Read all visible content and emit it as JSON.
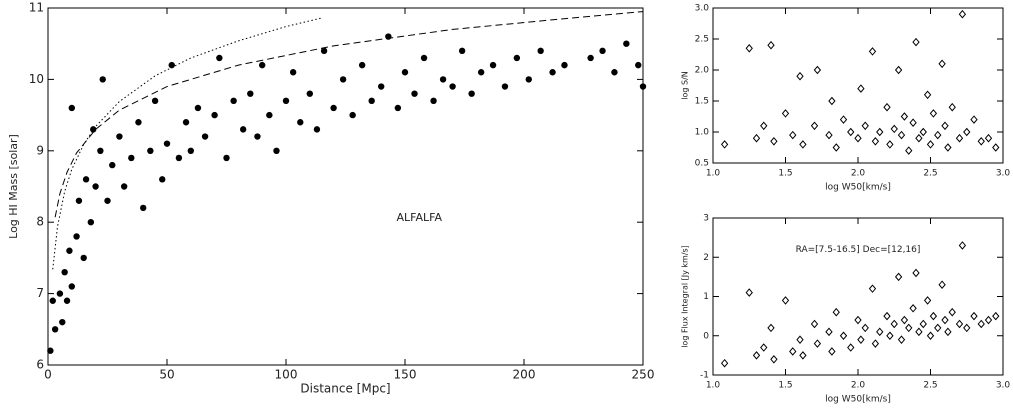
{
  "chart_data": [
    {
      "type": "scatter",
      "xlabel": "Distance [Mpc]",
      "ylabel": "Log HI Mass [solar]",
      "annotation": "ALFALFA",
      "annotation_x": 156,
      "annotation_y": 8.06,
      "marker": "filled-circle",
      "color": "#000000",
      "xlim": [
        0,
        250
      ],
      "ylim": [
        6,
        11
      ],
      "xticks": [
        0,
        50,
        100,
        150,
        200,
        250
      ],
      "yticks": [
        6,
        7,
        8,
        9,
        10,
        11
      ],
      "x": [
        1,
        2,
        3,
        5,
        6,
        7,
        8,
        9,
        10,
        10,
        12,
        13,
        15,
        16,
        18,
        19,
        20,
        22,
        23,
        25,
        27,
        30,
        32,
        35,
        38,
        40,
        43,
        45,
        48,
        50,
        52,
        55,
        58,
        60,
        63,
        66,
        70,
        72,
        75,
        78,
        82,
        85,
        88,
        90,
        93,
        96,
        100,
        103,
        106,
        110,
        113,
        116,
        120,
        124,
        128,
        132,
        136,
        140,
        143,
        147,
        150,
        154,
        158,
        162,
        166,
        170,
        174,
        178,
        182,
        187,
        192,
        197,
        202,
        207,
        212,
        217,
        228,
        233,
        238,
        243,
        248,
        250
      ],
      "y": [
        6.2,
        6.9,
        6.5,
        7.0,
        6.6,
        7.3,
        6.9,
        7.6,
        7.1,
        9.6,
        7.8,
        8.3,
        7.5,
        8.6,
        8.0,
        9.3,
        8.5,
        9.0,
        10.0,
        8.3,
        8.8,
        9.2,
        8.5,
        8.9,
        9.4,
        8.2,
        9.0,
        9.7,
        8.6,
        9.1,
        10.2,
        8.9,
        9.4,
        9.0,
        9.6,
        9.2,
        9.5,
        10.3,
        8.9,
        9.7,
        9.3,
        9.8,
        9.2,
        10.2,
        9.5,
        9.0,
        9.7,
        10.1,
        9.4,
        9.8,
        9.3,
        10.4,
        9.6,
        10.0,
        9.5,
        10.2,
        9.7,
        9.9,
        10.6,
        9.6,
        10.1,
        9.8,
        10.3,
        9.7,
        10.0,
        9.9,
        10.4,
        9.8,
        10.1,
        10.2,
        9.9,
        10.3,
        10.0,
        10.4,
        10.1,
        10.2,
        10.3,
        10.4,
        10.1,
        10.5,
        10.2,
        9.9
      ],
      "curves": [
        {
          "style": "dotted",
          "x": [
            2,
            4,
            7,
            10,
            15,
            20,
            30,
            45,
            60,
            80,
            100,
            115
          ],
          "y": [
            7.34,
            7.94,
            8.43,
            8.74,
            9.09,
            9.34,
            9.69,
            10.05,
            10.3,
            10.54,
            10.74,
            10.86
          ]
        },
        {
          "style": "dashed",
          "x": [
            3,
            5,
            8,
            12,
            20,
            30,
            50,
            80,
            120,
            170,
            220,
            250
          ],
          "y": [
            8.07,
            8.4,
            8.7,
            8.97,
            9.3,
            9.57,
            9.9,
            10.2,
            10.47,
            10.7,
            10.86,
            10.95
          ]
        }
      ]
    },
    {
      "type": "scatter",
      "xlabel": "log W50[km/s]",
      "ylabel": "log S/N",
      "marker": "open-diamond",
      "color": "#000000",
      "xlim": [
        1,
        3
      ],
      "ylim": [
        0.5,
        3
      ],
      "xticks": [
        {
          "value": 1,
          "label": "1.0"
        },
        1.5,
        {
          "value": 2,
          "label": "2.0"
        },
        2.5,
        {
          "value": 3,
          "label": "3.0"
        }
      ],
      "yticks": [
        0.5,
        {
          "value": 1,
          "label": "1.0"
        },
        1.5,
        {
          "value": 2,
          "label": "2.0"
        },
        2.5,
        {
          "value": 3,
          "label": "3.0"
        }
      ],
      "x": [
        1.08,
        1.25,
        1.3,
        1.35,
        1.4,
        1.42,
        1.5,
        1.55,
        1.6,
        1.62,
        1.7,
        1.72,
        1.8,
        1.82,
        1.85,
        1.9,
        1.95,
        2.0,
        2.02,
        2.05,
        2.1,
        2.12,
        2.15,
        2.2,
        2.22,
        2.25,
        2.28,
        2.3,
        2.32,
        2.35,
        2.38,
        2.4,
        2.42,
        2.45,
        2.48,
        2.5,
        2.52,
        2.55,
        2.58,
        2.6,
        2.62,
        2.65,
        2.7,
        2.72,
        2.75,
        2.8,
        2.85,
        2.9,
        2.95
      ],
      "y": [
        0.8,
        2.35,
        0.9,
        1.1,
        2.4,
        0.85,
        1.3,
        0.95,
        1.9,
        0.8,
        1.1,
        2.0,
        0.95,
        1.5,
        0.75,
        1.2,
        1.0,
        0.9,
        1.7,
        1.1,
        2.3,
        0.85,
        1.0,
        1.4,
        0.8,
        1.05,
        2.0,
        0.95,
        1.25,
        0.7,
        1.15,
        2.45,
        0.9,
        1.0,
        1.6,
        0.8,
        1.3,
        0.95,
        2.1,
        1.1,
        0.75,
        1.4,
        0.9,
        2.9,
        1.0,
        1.2,
        0.85,
        0.9,
        0.75
      ]
    },
    {
      "type": "scatter",
      "xlabel": "log W50[km/s]",
      "ylabel": "log Flux Integral [Jy km/s]",
      "annotation": "RA=[7.5-16.5]   Dec=[12,16]",
      "annotation_x": 2.0,
      "annotation_y": 2.2,
      "marker": "open-diamond",
      "color": "#000000",
      "xlim": [
        1,
        3
      ],
      "ylim": [
        -1,
        3
      ],
      "xticks": [
        {
          "value": 1,
          "label": "1.0"
        },
        1.5,
        {
          "value": 2,
          "label": "2.0"
        },
        2.5,
        {
          "value": 3,
          "label": "3.0"
        }
      ],
      "yticks": [
        -1,
        0,
        1,
        2,
        3
      ],
      "x": [
        1.08,
        1.25,
        1.3,
        1.35,
        1.4,
        1.42,
        1.5,
        1.55,
        1.6,
        1.62,
        1.7,
        1.72,
        1.8,
        1.82,
        1.85,
        1.9,
        1.95,
        2.0,
        2.02,
        2.05,
        2.1,
        2.12,
        2.15,
        2.2,
        2.22,
        2.25,
        2.28,
        2.3,
        2.32,
        2.35,
        2.38,
        2.4,
        2.42,
        2.45,
        2.48,
        2.5,
        2.52,
        2.55,
        2.58,
        2.6,
        2.62,
        2.65,
        2.7,
        2.72,
        2.75,
        2.8,
        2.85,
        2.9,
        2.95
      ],
      "y": [
        -0.7,
        1.1,
        -0.5,
        -0.3,
        0.2,
        -0.6,
        0.9,
        -0.4,
        -0.1,
        -0.5,
        0.3,
        -0.2,
        0.1,
        -0.4,
        0.6,
        0.0,
        -0.3,
        0.4,
        -0.1,
        0.2,
        1.2,
        -0.2,
        0.1,
        0.5,
        0.0,
        0.3,
        1.5,
        -0.1,
        0.4,
        0.2,
        0.7,
        1.6,
        0.1,
        0.3,
        0.9,
        0.0,
        0.5,
        0.2,
        1.3,
        0.4,
        0.1,
        0.6,
        0.3,
        2.3,
        0.2,
        0.5,
        0.3,
        0.4,
        0.5
      ]
    }
  ]
}
